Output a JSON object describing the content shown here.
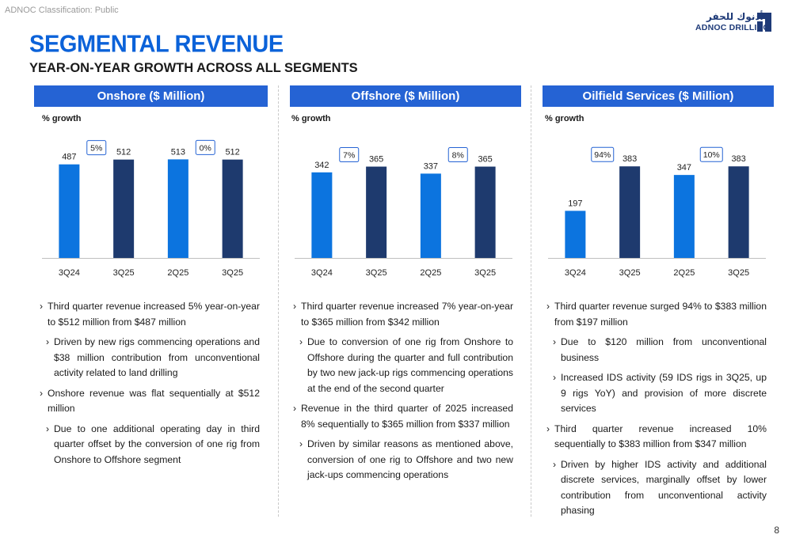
{
  "classification": "ADNOC Classification: Public",
  "logo": {
    "arabic": "أدنوك للحفر",
    "english": "ADNOC DRILLING"
  },
  "title": "SEGMENTAL REVENUE",
  "subtitle": "YEAR-ON-YEAR GROWTH ACROSS ALL SEGMENTS",
  "colors": {
    "accent": "#2563d4",
    "bar_light": "#0c74df",
    "bar_dark": "#1e3a6e",
    "title": "#0b62d9"
  },
  "panels": [
    {
      "header": "Onshore ($ Million)",
      "growth_label": "% growth",
      "chart_data": {
        "type": "bar",
        "categories": [
          "3Q24",
          "3Q25",
          "2Q25",
          "3Q25"
        ],
        "values": [
          487,
          512,
          513,
          512
        ],
        "bar_shades": [
          "light",
          "dark",
          "light",
          "dark"
        ],
        "growth_badges": [
          "5%",
          "0%"
        ],
        "ylim": [
          0,
          560
        ]
      },
      "bullets": [
        {
          "level": 1,
          "text": "Third quarter revenue increased 5% year-on-year to $512 million from $487 million"
        },
        {
          "level": 2,
          "text": "Driven by new rigs commencing operations and $38 million contribution from unconventional activity related to land drilling"
        },
        {
          "level": 1,
          "text": "Onshore revenue was flat sequentially at $512 million"
        },
        {
          "level": 2,
          "text": "Due to one additional operating day in third quarter offset by the conversion of one rig from Onshore to Offshore segment"
        }
      ]
    },
    {
      "header": "Offshore ($ Million)",
      "growth_label": "% growth",
      "chart_data": {
        "type": "bar",
        "categories": [
          "3Q24",
          "3Q25",
          "2Q25",
          "3Q25"
        ],
        "values": [
          342,
          365,
          337,
          365
        ],
        "bar_shades": [
          "light",
          "dark",
          "light",
          "dark"
        ],
        "growth_badges": [
          "7%",
          "8%"
        ],
        "ylim": [
          0,
          430
        ]
      },
      "bullets": [
        {
          "level": 1,
          "text": "Third quarter revenue increased 7% year-on-year to $365 million from $342 million"
        },
        {
          "level": 2,
          "text": "Due to conversion of one rig from Onshore to Offshore during the quarter and full contribution by two new jack-up rigs commencing operations at the end of the second quarter"
        },
        {
          "level": 1,
          "text": "Revenue in the third quarter of 2025 increased 8% sequentially to $365 million from $337 million"
        },
        {
          "level": 2,
          "text": "Driven by similar reasons as mentioned above, conversion of one rig to Offshore and two new jack-ups commencing operations"
        }
      ]
    },
    {
      "header": "Oilfield Services ($ Million)",
      "growth_label": "% growth",
      "chart_data": {
        "type": "bar",
        "categories": [
          "3Q24",
          "3Q25",
          "2Q25",
          "3Q25"
        ],
        "values": [
          197,
          383,
          347,
          383
        ],
        "bar_shades": [
          "light",
          "dark",
          "light",
          "dark"
        ],
        "growth_badges": [
          "94%",
          "10%"
        ],
        "ylim": [
          0,
          450
        ]
      },
      "bullets": [
        {
          "level": 1,
          "text": "Third quarter revenue surged 94% to $383 million from $197 million"
        },
        {
          "level": 2,
          "text": "Due to $120 million from unconventional business"
        },
        {
          "level": 2,
          "text": "Increased IDS activity (59 IDS rigs in 3Q25, up 9 rigs YoY) and provision of more discrete services"
        },
        {
          "level": 1,
          "text": "Third quarter revenue increased 10% sequentially to $383 million from $347 million"
        },
        {
          "level": 2,
          "text": "Driven by higher IDS activity and additional discrete services, marginally offset by lower contribution from unconventional activity phasing"
        }
      ]
    }
  ],
  "page_number": "8"
}
